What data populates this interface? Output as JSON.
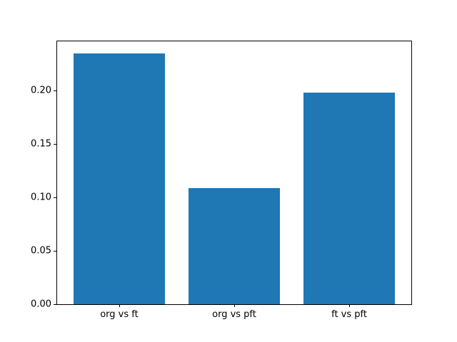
{
  "figure": {
    "background_color": "#ffffff",
    "spine_color": "#000000",
    "tick_label_color": "#000000"
  },
  "chart_data": {
    "type": "bar",
    "categories": [
      "org vs ft",
      "org vs pft",
      "ft vs pft"
    ],
    "values": [
      0.235,
      0.109,
      0.198
    ],
    "series_color": "#1f77b4",
    "title": "",
    "xlabel": "",
    "ylabel": "",
    "ylim": [
      0,
      0.246
    ],
    "yticks": [
      0.0,
      0.05,
      0.1,
      0.15,
      0.2
    ],
    "ytick_labels": [
      "0.00",
      "0.05",
      "0.10",
      "0.15",
      "0.20"
    ],
    "bar_width_fraction": 0.8,
    "x_margin_fraction": 0.54,
    "grid": false,
    "legend": "none"
  }
}
